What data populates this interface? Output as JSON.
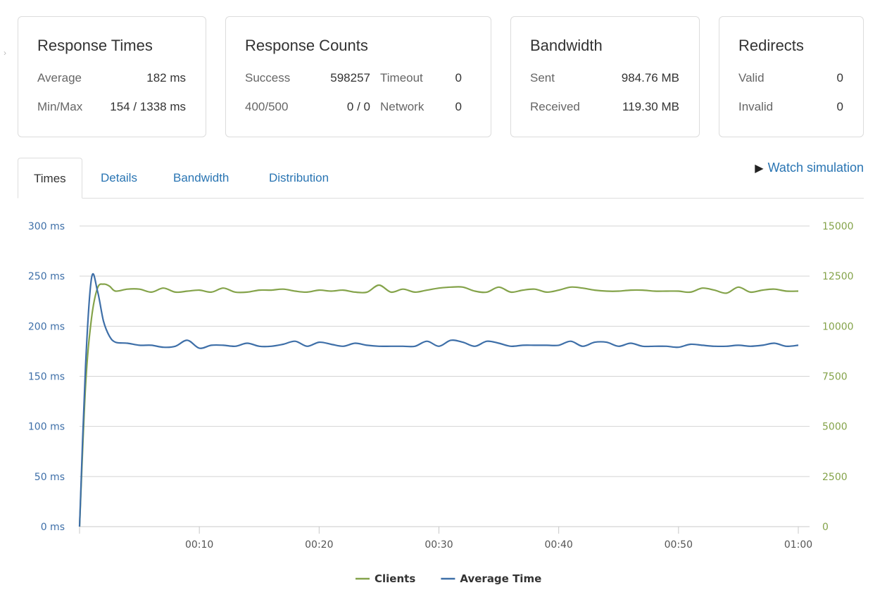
{
  "cards": {
    "response_times": {
      "title": "Response Times",
      "average_label": "Average",
      "average_value": "182 ms",
      "minmax_label": "Min/Max",
      "minmax_value": "154 / 1338 ms"
    },
    "response_counts": {
      "title": "Response Counts",
      "success_label": "Success",
      "success_value": "598257",
      "timeout_label": "Timeout",
      "timeout_value": "0",
      "err_label": "400/500",
      "err_value": "0 / 0",
      "network_label": "Network",
      "network_value": "0"
    },
    "bandwidth": {
      "title": "Bandwidth",
      "sent_label": "Sent",
      "sent_value": "984.76 MB",
      "received_label": "Received",
      "received_value": "119.30 MB"
    },
    "redirects": {
      "title": "Redirects",
      "valid_label": "Valid",
      "valid_value": "0",
      "invalid_label": "Invalid",
      "invalid_value": "0"
    }
  },
  "tabs": [
    "Times",
    "Details",
    "Bandwidth",
    "Distribution"
  ],
  "active_tab": "Times",
  "watch_simulation": "Watch simulation",
  "colors": {
    "link": "#2a75b3",
    "clients": "#84a34a",
    "average": "#3e6fa8"
  },
  "chart_data": {
    "type": "line",
    "x_ticks": [
      "00:10",
      "00:20",
      "00:30",
      "00:40",
      "00:50",
      "01:00"
    ],
    "x_tick_seconds": [
      10,
      20,
      30,
      40,
      50,
      60
    ],
    "x_range_seconds": [
      0,
      60
    ],
    "y_left_ticks": [
      "0 ms",
      "50 ms",
      "100 ms",
      "150 ms",
      "200 ms",
      "250 ms",
      "300 ms"
    ],
    "y_left_range": [
      0,
      300
    ],
    "y_right_ticks": [
      "0",
      "2500",
      "5000",
      "7500",
      "10000",
      "12500",
      "15000"
    ],
    "y_right_range": [
      0,
      15000
    ],
    "legend_placement": "bottom-center",
    "grid": true,
    "series": [
      {
        "name": "Clients",
        "axis": "right",
        "color": "#84a34a",
        "x": [
          0,
          0.5,
          1,
          1.5,
          2,
          2.5,
          3,
          4,
          5,
          6,
          7,
          8,
          9,
          10,
          11,
          12,
          13,
          14,
          15,
          16,
          17,
          18,
          19,
          20,
          21,
          22,
          23,
          24,
          25,
          26,
          27,
          28,
          29,
          30,
          31,
          32,
          33,
          34,
          35,
          36,
          37,
          38,
          39,
          40,
          41,
          42,
          43,
          44,
          45,
          46,
          47,
          48,
          49,
          50,
          51,
          52,
          53,
          54,
          55,
          56,
          57,
          58,
          59,
          60
        ],
        "values": [
          0,
          7000,
          10400,
          11900,
          12100,
          12000,
          11750,
          11850,
          11850,
          11700,
          11900,
          11700,
          11750,
          11800,
          11700,
          11900,
          11700,
          11700,
          11800,
          11800,
          11850,
          11750,
          11700,
          11800,
          11750,
          11800,
          11700,
          11700,
          12050,
          11700,
          11850,
          11700,
          11800,
          11900,
          11950,
          11950,
          11750,
          11700,
          11950,
          11700,
          11800,
          11850,
          11700,
          11800,
          11950,
          11900,
          11800,
          11750,
          11750,
          11800,
          11800,
          11750,
          11750,
          11750,
          11700,
          11900,
          11800,
          11650,
          11950,
          11700,
          11800,
          11850,
          11750,
          11750
        ]
      },
      {
        "name": "Average Time",
        "axis": "left",
        "color": "#3e6fa8",
        "x": [
          0,
          0.5,
          1,
          1.5,
          2,
          2.5,
          3,
          4,
          5,
          6,
          7,
          8,
          9,
          10,
          11,
          12,
          13,
          14,
          15,
          16,
          17,
          18,
          19,
          20,
          21,
          22,
          23,
          24,
          25,
          26,
          27,
          28,
          29,
          30,
          31,
          32,
          33,
          34,
          35,
          36,
          37,
          38,
          39,
          40,
          41,
          42,
          43,
          44,
          45,
          46,
          47,
          48,
          49,
          50,
          51,
          52,
          53,
          54,
          55,
          56,
          57,
          58,
          59,
          60
        ],
        "values": [
          0,
          160,
          248,
          235,
          205,
          190,
          184,
          183,
          181,
          181,
          179,
          180,
          186,
          178,
          181,
          181,
          180,
          183,
          180,
          180,
          182,
          185,
          180,
          184,
          182,
          180,
          183,
          181,
          180,
          180,
          180,
          180,
          185,
          180,
          186,
          184,
          180,
          185,
          183,
          180,
          181,
          181,
          181,
          181,
          185,
          180,
          184,
          184,
          180,
          183,
          180,
          180,
          180,
          179,
          182,
          181,
          180,
          180,
          181,
          180,
          181,
          183,
          180,
          181
        ]
      }
    ]
  }
}
